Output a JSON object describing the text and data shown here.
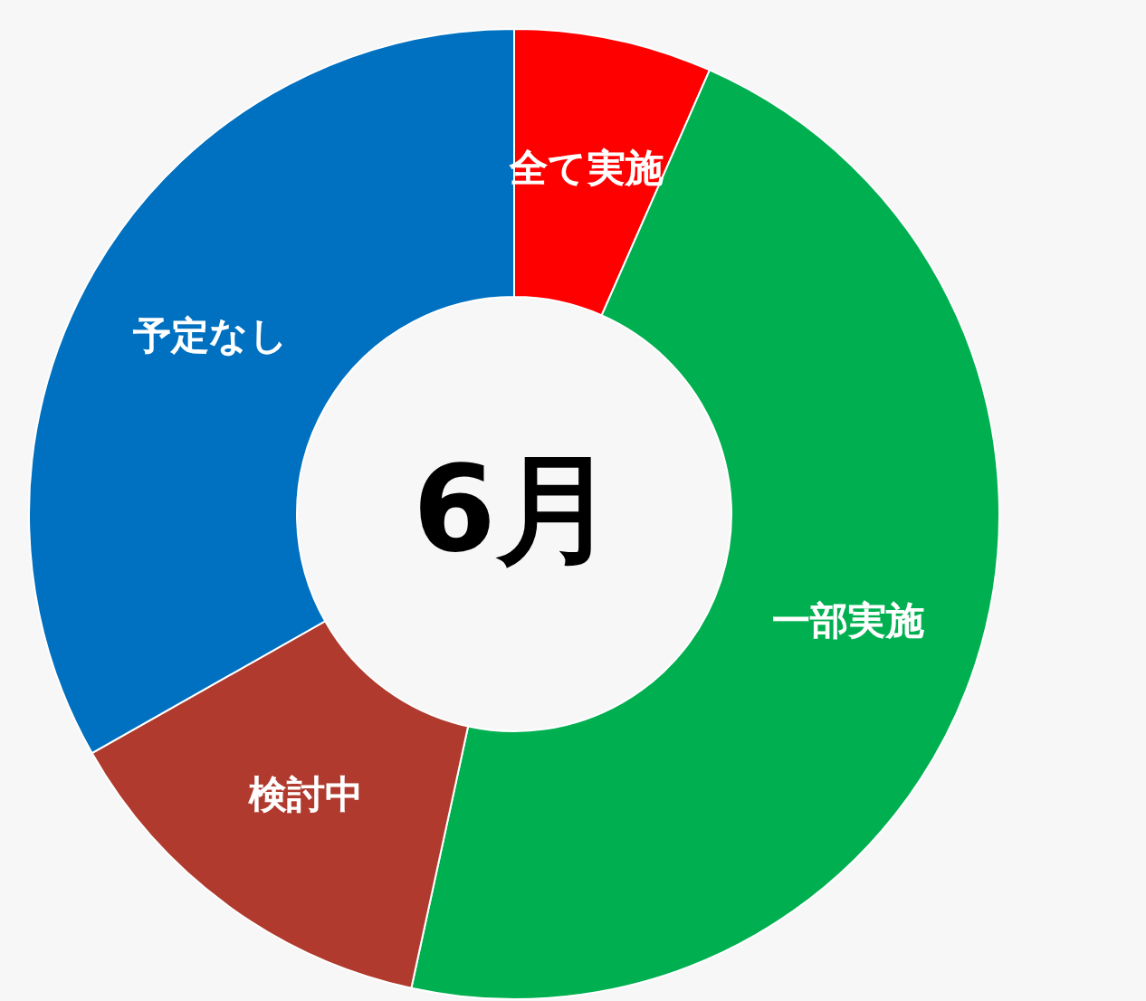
{
  "chart_data": {
    "type": "donut",
    "title": "6月",
    "categories": [
      "全て実施",
      "一部実施",
      "検討中",
      "予定なし"
    ],
    "values": [
      6.6,
      46.8,
      13.4,
      33.2
    ],
    "colors": [
      "#ff0000",
      "#00b050",
      "#b03a2e",
      "#0070c0"
    ]
  }
}
